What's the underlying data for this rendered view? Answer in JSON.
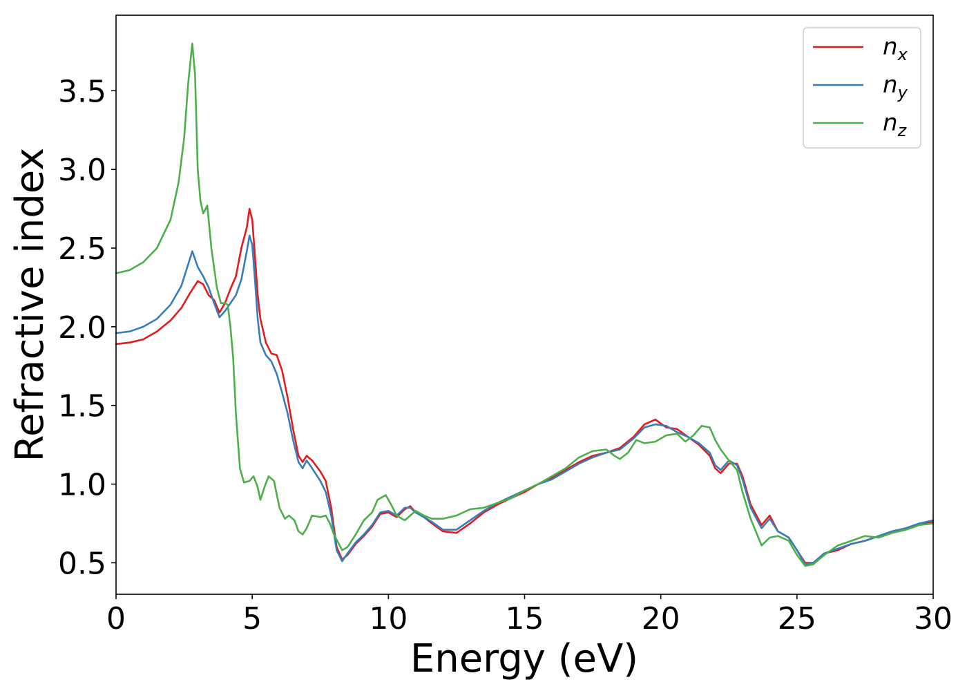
{
  "chart_data": {
    "type": "line",
    "xlabel": "Energy (eV)",
    "ylabel": "Refractive index",
    "xlim": [
      0,
      30
    ],
    "ylim": [
      0.3,
      3.98
    ],
    "xticks": [
      0,
      5,
      10,
      15,
      20,
      25,
      30
    ],
    "yticks": [
      0.5,
      1.0,
      1.5,
      2.0,
      2.5,
      3.0,
      3.5
    ],
    "xtick_labels": [
      "0",
      "5",
      "10",
      "15",
      "20",
      "25",
      "30"
    ],
    "ytick_labels": [
      "0.5",
      "1.0",
      "1.5",
      "2.0",
      "2.5",
      "3.0",
      "3.5"
    ],
    "grid": false,
    "legend_position": "top-right",
    "series": [
      {
        "name": "n_x",
        "label_base": "n",
        "label_sub": "x",
        "color": "#e41a1c",
        "points": [
          [
            0,
            1.89
          ],
          [
            0.5,
            1.9
          ],
          [
            1.0,
            1.92
          ],
          [
            1.5,
            1.97
          ],
          [
            2.0,
            2.04
          ],
          [
            2.4,
            2.12
          ],
          [
            2.7,
            2.21
          ],
          [
            3.0,
            2.29
          ],
          [
            3.2,
            2.27
          ],
          [
            3.4,
            2.2
          ],
          [
            3.6,
            2.17
          ],
          [
            3.8,
            2.09
          ],
          [
            4.0,
            2.15
          ],
          [
            4.2,
            2.24
          ],
          [
            4.4,
            2.32
          ],
          [
            4.6,
            2.5
          ],
          [
            4.8,
            2.63
          ],
          [
            4.9,
            2.75
          ],
          [
            5.0,
            2.68
          ],
          [
            5.1,
            2.45
          ],
          [
            5.2,
            2.2
          ],
          [
            5.3,
            2.05
          ],
          [
            5.5,
            1.9
          ],
          [
            5.7,
            1.83
          ],
          [
            5.9,
            1.82
          ],
          [
            6.1,
            1.72
          ],
          [
            6.3,
            1.55
          ],
          [
            6.5,
            1.35
          ],
          [
            6.7,
            1.18
          ],
          [
            6.85,
            1.14
          ],
          [
            7.0,
            1.18
          ],
          [
            7.2,
            1.15
          ],
          [
            7.5,
            1.08
          ],
          [
            7.7,
            1.02
          ],
          [
            7.9,
            0.85
          ],
          [
            8.1,
            0.6
          ],
          [
            8.3,
            0.52
          ],
          [
            8.5,
            0.55
          ],
          [
            8.8,
            0.62
          ],
          [
            9.1,
            0.67
          ],
          [
            9.4,
            0.73
          ],
          [
            9.7,
            0.81
          ],
          [
            10.0,
            0.82
          ],
          [
            10.3,
            0.79
          ],
          [
            10.6,
            0.84
          ],
          [
            10.8,
            0.86
          ],
          [
            11.0,
            0.82
          ],
          [
            11.3,
            0.79
          ],
          [
            11.6,
            0.75
          ],
          [
            12.0,
            0.7
          ],
          [
            12.5,
            0.69
          ],
          [
            13.0,
            0.75
          ],
          [
            13.5,
            0.82
          ],
          [
            14.0,
            0.87
          ],
          [
            14.5,
            0.91
          ],
          [
            15.0,
            0.95
          ],
          [
            15.5,
            1.0
          ],
          [
            16.0,
            1.04
          ],
          [
            16.5,
            1.09
          ],
          [
            17.0,
            1.14
          ],
          [
            17.5,
            1.18
          ],
          [
            18.0,
            1.2
          ],
          [
            18.5,
            1.23
          ],
          [
            19.0,
            1.3
          ],
          [
            19.4,
            1.38
          ],
          [
            19.8,
            1.41
          ],
          [
            20.2,
            1.36
          ],
          [
            20.6,
            1.35
          ],
          [
            21.0,
            1.3
          ],
          [
            21.4,
            1.25
          ],
          [
            21.8,
            1.18
          ],
          [
            22.0,
            1.1
          ],
          [
            22.2,
            1.07
          ],
          [
            22.5,
            1.13
          ],
          [
            22.8,
            1.13
          ],
          [
            23.0,
            1.05
          ],
          [
            23.3,
            0.87
          ],
          [
            23.7,
            0.74
          ],
          [
            24.0,
            0.8
          ],
          [
            24.3,
            0.7
          ],
          [
            24.7,
            0.66
          ],
          [
            25.0,
            0.58
          ],
          [
            25.3,
            0.5
          ],
          [
            25.6,
            0.5
          ],
          [
            26.0,
            0.56
          ],
          [
            26.5,
            0.58
          ],
          [
            27.0,
            0.62
          ],
          [
            27.5,
            0.64
          ],
          [
            28.0,
            0.67
          ],
          [
            28.5,
            0.7
          ],
          [
            29.0,
            0.72
          ],
          [
            29.5,
            0.75
          ],
          [
            30.0,
            0.76
          ]
        ]
      },
      {
        "name": "n_y",
        "label_base": "n",
        "label_sub": "y",
        "color": "#377eb8",
        "points": [
          [
            0,
            1.96
          ],
          [
            0.5,
            1.97
          ],
          [
            1.0,
            2.0
          ],
          [
            1.5,
            2.05
          ],
          [
            2.0,
            2.14
          ],
          [
            2.4,
            2.26
          ],
          [
            2.6,
            2.37
          ],
          [
            2.8,
            2.48
          ],
          [
            3.0,
            2.38
          ],
          [
            3.2,
            2.32
          ],
          [
            3.4,
            2.25
          ],
          [
            3.6,
            2.15
          ],
          [
            3.8,
            2.06
          ],
          [
            4.0,
            2.1
          ],
          [
            4.2,
            2.15
          ],
          [
            4.4,
            2.2
          ],
          [
            4.6,
            2.3
          ],
          [
            4.8,
            2.48
          ],
          [
            4.9,
            2.58
          ],
          [
            5.0,
            2.52
          ],
          [
            5.1,
            2.3
          ],
          [
            5.2,
            2.05
          ],
          [
            5.3,
            1.9
          ],
          [
            5.5,
            1.82
          ],
          [
            5.7,
            1.78
          ],
          [
            5.9,
            1.7
          ],
          [
            6.1,
            1.58
          ],
          [
            6.3,
            1.45
          ],
          [
            6.5,
            1.28
          ],
          [
            6.7,
            1.14
          ],
          [
            6.85,
            1.1
          ],
          [
            7.0,
            1.15
          ],
          [
            7.2,
            1.1
          ],
          [
            7.5,
            1.02
          ],
          [
            7.7,
            0.95
          ],
          [
            7.9,
            0.8
          ],
          [
            8.1,
            0.58
          ],
          [
            8.3,
            0.51
          ],
          [
            8.5,
            0.56
          ],
          [
            8.8,
            0.63
          ],
          [
            9.1,
            0.68
          ],
          [
            9.4,
            0.74
          ],
          [
            9.7,
            0.82
          ],
          [
            10.0,
            0.83
          ],
          [
            10.3,
            0.8
          ],
          [
            10.6,
            0.85
          ],
          [
            10.8,
            0.85
          ],
          [
            11.0,
            0.82
          ],
          [
            11.3,
            0.79
          ],
          [
            11.6,
            0.76
          ],
          [
            12.0,
            0.71
          ],
          [
            12.5,
            0.71
          ],
          [
            13.0,
            0.77
          ],
          [
            13.5,
            0.83
          ],
          [
            14.0,
            0.88
          ],
          [
            14.5,
            0.92
          ],
          [
            15.0,
            0.96
          ],
          [
            15.5,
            1.0
          ],
          [
            16.0,
            1.03
          ],
          [
            16.5,
            1.08
          ],
          [
            17.0,
            1.13
          ],
          [
            17.5,
            1.17
          ],
          [
            18.0,
            1.2
          ],
          [
            18.5,
            1.22
          ],
          [
            19.0,
            1.29
          ],
          [
            19.4,
            1.36
          ],
          [
            19.8,
            1.38
          ],
          [
            20.2,
            1.37
          ],
          [
            20.6,
            1.33
          ],
          [
            21.0,
            1.3
          ],
          [
            21.4,
            1.26
          ],
          [
            21.8,
            1.2
          ],
          [
            22.0,
            1.12
          ],
          [
            22.2,
            1.09
          ],
          [
            22.5,
            1.15
          ],
          [
            22.8,
            1.12
          ],
          [
            23.0,
            1.03
          ],
          [
            23.3,
            0.85
          ],
          [
            23.7,
            0.72
          ],
          [
            24.0,
            0.78
          ],
          [
            24.3,
            0.7
          ],
          [
            24.7,
            0.66
          ],
          [
            25.0,
            0.58
          ],
          [
            25.3,
            0.49
          ],
          [
            25.6,
            0.5
          ],
          [
            26.0,
            0.56
          ],
          [
            26.5,
            0.59
          ],
          [
            27.0,
            0.62
          ],
          [
            27.5,
            0.64
          ],
          [
            28.0,
            0.67
          ],
          [
            28.5,
            0.7
          ],
          [
            29.0,
            0.72
          ],
          [
            29.5,
            0.75
          ],
          [
            30.0,
            0.77
          ]
        ]
      },
      {
        "name": "n_z",
        "label_base": "n",
        "label_sub": "z",
        "color": "#4daf4a",
        "points": [
          [
            0,
            2.34
          ],
          [
            0.5,
            2.36
          ],
          [
            1.0,
            2.41
          ],
          [
            1.5,
            2.5
          ],
          [
            2.0,
            2.68
          ],
          [
            2.3,
            2.92
          ],
          [
            2.5,
            3.2
          ],
          [
            2.65,
            3.55
          ],
          [
            2.8,
            3.8
          ],
          [
            2.9,
            3.6
          ],
          [
            3.0,
            3.0
          ],
          [
            3.1,
            2.8
          ],
          [
            3.2,
            2.72
          ],
          [
            3.35,
            2.77
          ],
          [
            3.5,
            2.5
          ],
          [
            3.7,
            2.25
          ],
          [
            3.85,
            2.15
          ],
          [
            4.0,
            2.15
          ],
          [
            4.1,
            2.14
          ],
          [
            4.2,
            2.0
          ],
          [
            4.3,
            1.8
          ],
          [
            4.4,
            1.45
          ],
          [
            4.55,
            1.1
          ],
          [
            4.7,
            1.01
          ],
          [
            4.9,
            1.02
          ],
          [
            5.05,
            1.05
          ],
          [
            5.2,
            0.98
          ],
          [
            5.3,
            0.9
          ],
          [
            5.45,
            0.98
          ],
          [
            5.6,
            1.05
          ],
          [
            5.8,
            1.02
          ],
          [
            6.0,
            0.85
          ],
          [
            6.2,
            0.78
          ],
          [
            6.35,
            0.8
          ],
          [
            6.55,
            0.77
          ],
          [
            6.7,
            0.7
          ],
          [
            6.85,
            0.68
          ],
          [
            7.0,
            0.72
          ],
          [
            7.2,
            0.8
          ],
          [
            7.5,
            0.79
          ],
          [
            7.7,
            0.8
          ],
          [
            7.85,
            0.75
          ],
          [
            8.0,
            0.68
          ],
          [
            8.3,
            0.58
          ],
          [
            8.5,
            0.6
          ],
          [
            8.8,
            0.68
          ],
          [
            9.1,
            0.77
          ],
          [
            9.4,
            0.82
          ],
          [
            9.6,
            0.9
          ],
          [
            9.9,
            0.93
          ],
          [
            10.1,
            0.87
          ],
          [
            10.3,
            0.8
          ],
          [
            10.6,
            0.77
          ],
          [
            10.8,
            0.8
          ],
          [
            11.0,
            0.83
          ],
          [
            11.3,
            0.8
          ],
          [
            11.6,
            0.78
          ],
          [
            12.0,
            0.78
          ],
          [
            12.5,
            0.8
          ],
          [
            13.0,
            0.84
          ],
          [
            13.5,
            0.85
          ],
          [
            14.0,
            0.88
          ],
          [
            14.5,
            0.91
          ],
          [
            15.0,
            0.96
          ],
          [
            15.5,
            1.0
          ],
          [
            16.0,
            1.05
          ],
          [
            16.5,
            1.1
          ],
          [
            17.0,
            1.17
          ],
          [
            17.5,
            1.21
          ],
          [
            18.0,
            1.22
          ],
          [
            18.3,
            1.18
          ],
          [
            18.5,
            1.16
          ],
          [
            18.8,
            1.2
          ],
          [
            19.1,
            1.28
          ],
          [
            19.4,
            1.26
          ],
          [
            19.8,
            1.27
          ],
          [
            20.2,
            1.31
          ],
          [
            20.6,
            1.32
          ],
          [
            20.9,
            1.27
          ],
          [
            21.2,
            1.31
          ],
          [
            21.5,
            1.37
          ],
          [
            21.8,
            1.36
          ],
          [
            22.0,
            1.28
          ],
          [
            22.2,
            1.22
          ],
          [
            22.5,
            1.15
          ],
          [
            22.8,
            1.09
          ],
          [
            23.0,
            0.95
          ],
          [
            23.3,
            0.78
          ],
          [
            23.7,
            0.61
          ],
          [
            24.0,
            0.66
          ],
          [
            24.3,
            0.67
          ],
          [
            24.7,
            0.64
          ],
          [
            25.0,
            0.55
          ],
          [
            25.3,
            0.48
          ],
          [
            25.6,
            0.49
          ],
          [
            26.0,
            0.55
          ],
          [
            26.5,
            0.61
          ],
          [
            27.0,
            0.64
          ],
          [
            27.5,
            0.67
          ],
          [
            28.0,
            0.66
          ],
          [
            28.5,
            0.69
          ],
          [
            29.0,
            0.71
          ],
          [
            29.5,
            0.74
          ],
          [
            30.0,
            0.75
          ]
        ]
      }
    ]
  }
}
